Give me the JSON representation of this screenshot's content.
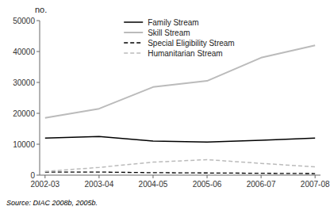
{
  "chart_data": {
    "type": "line",
    "categories": [
      "2002-03",
      "2003-04",
      "2004-05",
      "2005-06",
      "2006-07",
      "2007-08"
    ],
    "series": [
      {
        "name": "Family Stream",
        "color": "#000000",
        "line_style": "solid",
        "values": [
          12000,
          12500,
          11000,
          10700,
          11300,
          12000
        ]
      },
      {
        "name": "Skill Stream",
        "color": "#bbbbbb",
        "line_style": "solid",
        "values": [
          18500,
          21500,
          28500,
          30500,
          38000,
          42000
        ]
      },
      {
        "name": "Special Eligibility Stream",
        "color": "#000000",
        "line_style": "dashed",
        "values": [
          1000,
          1000,
          800,
          700,
          600,
          500
        ]
      },
      {
        "name": "Humanitarian Stream",
        "color": "#bbbbbb",
        "line_style": "dashed",
        "values": [
          1200,
          2500,
          4200,
          5000,
          3800,
          2700
        ]
      }
    ],
    "ylim": [
      0,
      50000
    ],
    "yticks": [
      0,
      10000,
      20000,
      30000,
      40000,
      50000
    ],
    "ylabel": "no.",
    "annotations": [
      "Source: DIAC 2008b, 2005b."
    ],
    "grid": false,
    "legend": "upper left"
  }
}
